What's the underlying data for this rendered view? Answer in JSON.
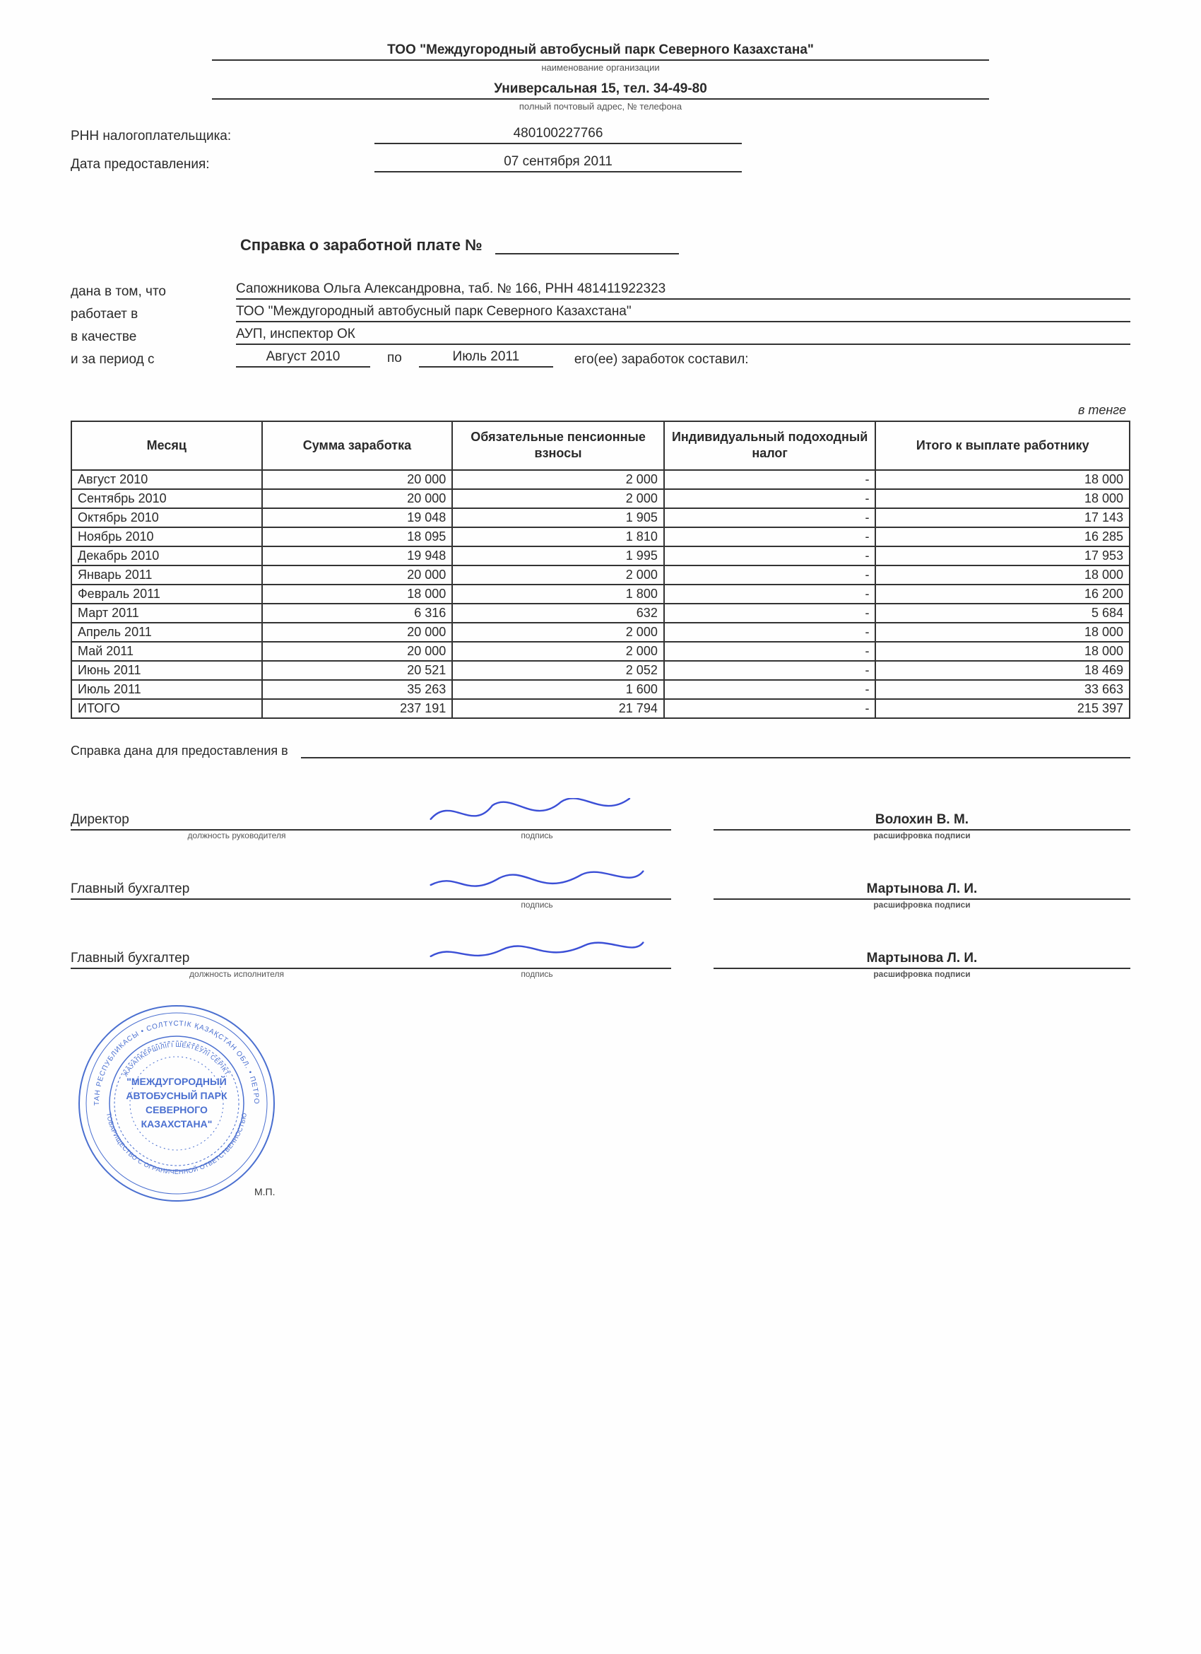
{
  "header": {
    "organization": "ТОО \"Междугородный автобусный парк Северного Казахстана\"",
    "org_sublabel": "наименование организации",
    "address": "Универсальная 15, тел. 34-49-80",
    "addr_sublabel": "полный почтовый адрес, № телефона",
    "rnn_label": "РНН налогоплательщика:",
    "rnn_value": "480100227766",
    "date_label": "Дата предоставления:",
    "date_value": "07 сентября 2011"
  },
  "title": "Справка о заработной плате №",
  "info": {
    "given_label": "дана в том, что",
    "given_value": "Сапожникова Ольга Александровна, таб. № 166, РНН 481411922323",
    "works_label": "работает в",
    "works_value": "ТОО \"Междугородный автобусный парк Северного Казахстана\"",
    "as_label": "в качестве",
    "as_value": "АУП, инспектор ОК",
    "period_label": "и за период с",
    "period_from": "Август 2010",
    "period_po": "по",
    "period_to": "Июль 2011",
    "period_tail": "его(ее) заработок составил:"
  },
  "currency_note": "в тенге",
  "table": {
    "columns": [
      "Месяц",
      "Сумма заработка",
      "Обязательные пенсионные взносы",
      "Индивидуальный подоходный налог",
      "Итого к выплате работнику"
    ],
    "col_widths_pct": [
      18,
      18,
      20,
      20,
      24
    ],
    "rows": [
      [
        "Август 2010",
        "20 000",
        "2 000",
        "-",
        "18 000"
      ],
      [
        "Сентябрь 2010",
        "20 000",
        "2 000",
        "-",
        "18 000"
      ],
      [
        "Октябрь 2010",
        "19 048",
        "1 905",
        "-",
        "17 143"
      ],
      [
        "Ноябрь 2010",
        "18 095",
        "1 810",
        "-",
        "16 285"
      ],
      [
        "Декабрь 2010",
        "19 948",
        "1 995",
        "-",
        "17 953"
      ],
      [
        "Январь 2011",
        "20 000",
        "2 000",
        "-",
        "18 000"
      ],
      [
        "Февраль 2011",
        "18 000",
        "1 800",
        "-",
        "16 200"
      ],
      [
        "Март 2011",
        "6 316",
        "632",
        "-",
        "5 684"
      ],
      [
        "Апрель 2011",
        "20 000",
        "2 000",
        "-",
        "18 000"
      ],
      [
        "Май 2011",
        "20 000",
        "2 000",
        "-",
        "18 000"
      ],
      [
        "Июнь 2011",
        "20 521",
        "2 052",
        "-",
        "18 469"
      ],
      [
        "Июль 2011",
        "35 263",
        "1 600",
        "-",
        "33 663"
      ]
    ],
    "total_label": "ИТОГО",
    "total_row": [
      "237 191",
      "21 794",
      "-",
      "215 397"
    ]
  },
  "cert_for_label": "Справка дана для предоставления в",
  "signatures": {
    "rows": [
      {
        "role": "Директор",
        "role_sub": "должность руководителя",
        "sign_sub": "подпись",
        "name": "Волохин В. М.",
        "name_sub": "расшифровка подписи"
      },
      {
        "role": "Главный бухгалтер",
        "role_sub": "",
        "sign_sub": "подпись",
        "name": "Мартынова Л. И.",
        "name_sub": "расшифровка подписи"
      },
      {
        "role": "Главный бухгалтер",
        "role_sub": "должность исполнителя",
        "sign_sub": "подпись",
        "name": "Мартынова Л. И.",
        "name_sub": "расшифровка подписи"
      }
    ]
  },
  "stamp": {
    "outer_text_top": "ҚАЗАҚСТАН РЕСПУБЛИКАСЫ • СОЛТҮСТІК ҚАЗАҚСТАН ОБЛ. • ПЕТРОПАВЛ Қ.",
    "outer_text_bottom": "ТОВАРИЩЕСТВО С ОГРАНИЧЕННОЙ ОТВЕТСТВЕННОСТЬЮ",
    "mid_text": "ЖАУАПКЕРШІЛІГІ ШЕКТЕУЛІ СЕРІКТ.",
    "center_lines": [
      "\"МЕЖДУГОРОДНЫЙ",
      "АВТОБУСНЫЙ ПАРК",
      "СЕВЕРНОГО",
      "КАЗАХСТАНА\""
    ],
    "mp_label": "М.П.",
    "color": "#4a6fd0"
  },
  "colors": {
    "text": "#2a2a2a",
    "border": "#333333",
    "signature_ink": "#3b4fd6",
    "stamp": "#4a6fd0",
    "background": "#fefefe"
  }
}
